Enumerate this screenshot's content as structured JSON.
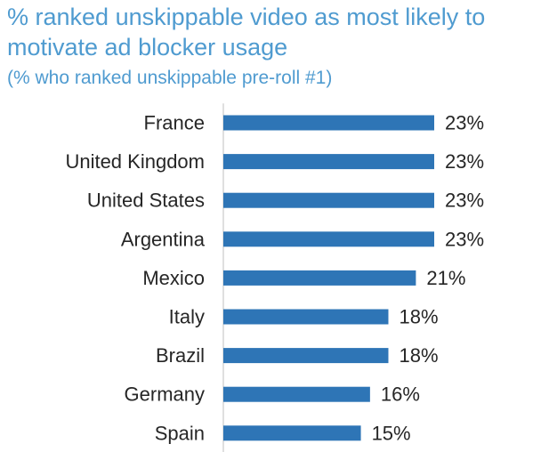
{
  "header": {
    "title": "% ranked unskippable video as most likely to motivate ad blocker usage",
    "subtitle": "(% who ranked unskippable pre-roll #1)"
  },
  "chart_data": {
    "type": "bar",
    "orientation": "horizontal",
    "categories": [
      "France",
      "United Kingdom",
      "United States",
      "Argentina",
      "Mexico",
      "Italy",
      "Brazil",
      "Germany",
      "Spain"
    ],
    "values": [
      23,
      23,
      23,
      23,
      21,
      18,
      18,
      16,
      15
    ],
    "value_labels": [
      "23%",
      "23%",
      "23%",
      "23%",
      "21%",
      "18%",
      "18%",
      "16%",
      "15%"
    ],
    "title": "% ranked unskippable video as most likely to motivate ad blocker usage",
    "subtitle": "(% who ranked unskippable pre-roll #1)",
    "xlabel": "",
    "ylabel": "",
    "xlim": [
      0,
      23
    ],
    "grid": false,
    "legend": "none",
    "bar_color": "#2e75b6",
    "title_color": "#4f9bd0"
  }
}
